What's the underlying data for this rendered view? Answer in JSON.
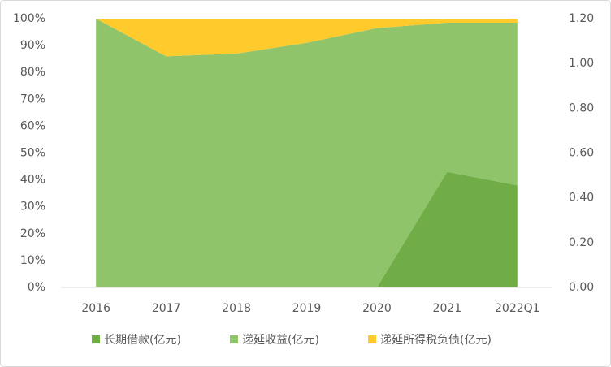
{
  "chart_data": {
    "type": "stacked_area",
    "categories": [
      "2016",
      "2017",
      "2018",
      "2019",
      "2020",
      "2021",
      "2022Q1"
    ],
    "series": [
      {
        "name": "长期借款(亿元)",
        "color": "#70ad47",
        "values": [
          0,
          0,
          0,
          0,
          0,
          43,
          38
        ]
      },
      {
        "name": "递延收益(亿元)",
        "color": "#8fc46a",
        "values": [
          100,
          86,
          87,
          91,
          96.5,
          55.5,
          60.5
        ]
      },
      {
        "name": "递延所得税负债(亿元)",
        "color": "#ffca2c",
        "values": [
          0,
          14,
          13,
          9,
          3.5,
          1.5,
          1.5
        ]
      }
    ],
    "ylim": [
      0,
      100
    ],
    "yticks": [
      {
        "value": 0,
        "label": "0%"
      },
      {
        "value": 10,
        "label": "10%"
      },
      {
        "value": 20,
        "label": "20%"
      },
      {
        "value": 30,
        "label": "30%"
      },
      {
        "value": 40,
        "label": "40%"
      },
      {
        "value": 50,
        "label": "50%"
      },
      {
        "value": 60,
        "label": "60%"
      },
      {
        "value": 70,
        "label": "70%"
      },
      {
        "value": 80,
        "label": "80%"
      },
      {
        "value": 90,
        "label": "90%"
      },
      {
        "value": 100,
        "label": "100%"
      }
    ],
    "y2lim": [
      0,
      1.2
    ],
    "y2ticks": [
      {
        "value": 0,
        "label": "0.00"
      },
      {
        "value": 0.2,
        "label": "0.20"
      },
      {
        "value": 0.4,
        "label": "0.40"
      },
      {
        "value": 0.6,
        "label": "0.60"
      },
      {
        "value": 0.8,
        "label": "0.80"
      },
      {
        "value": 1,
        "label": "1.00"
      },
      {
        "value": 1.2,
        "label": "1.20"
      }
    ],
    "grid": false,
    "legend": "bottom"
  }
}
